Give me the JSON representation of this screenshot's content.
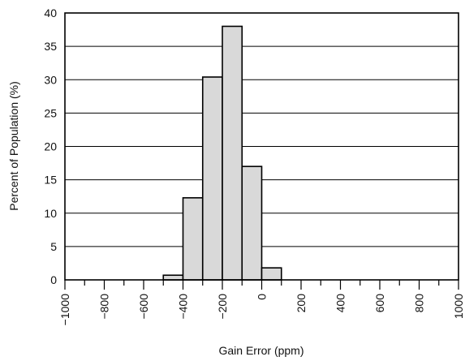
{
  "chart_data": {
    "type": "bar",
    "xlabel": "Gain Error (ppm)",
    "ylabel": "Percent of Population (%)",
    "xlim": [
      -1000,
      1000
    ],
    "ylim": [
      0,
      40
    ],
    "x_ticks": [
      -1000,
      -800,
      -600,
      -400,
      -200,
      0,
      200,
      400,
      600,
      800,
      1000
    ],
    "x_tick_labels": [
      "−1000",
      "−800",
      "−600",
      "−400",
      "−200",
      "0",
      "200",
      "400",
      "600",
      "800",
      "1000"
    ],
    "x_minor_step": 100,
    "y_ticks": [
      0,
      5,
      10,
      15,
      20,
      25,
      30,
      35,
      40
    ],
    "y_tick_labels": [
      "0",
      "5",
      "10",
      "15",
      "20",
      "25",
      "30",
      "35",
      "40"
    ],
    "grid": "horizontal",
    "bars": [
      {
        "x0": -500,
        "x1": -400,
        "value": 0.7
      },
      {
        "x0": -400,
        "x1": -300,
        "value": 12.3
      },
      {
        "x0": -300,
        "x1": -200,
        "value": 30.4
      },
      {
        "x0": -200,
        "x1": -100,
        "value": 38.0
      },
      {
        "x0": -100,
        "x1": 0,
        "value": 17.0
      },
      {
        "x0": 0,
        "x1": 100,
        "value": 1.8
      }
    ],
    "bar_fill": "#d9d9d9",
    "bar_stroke": "#000000"
  }
}
